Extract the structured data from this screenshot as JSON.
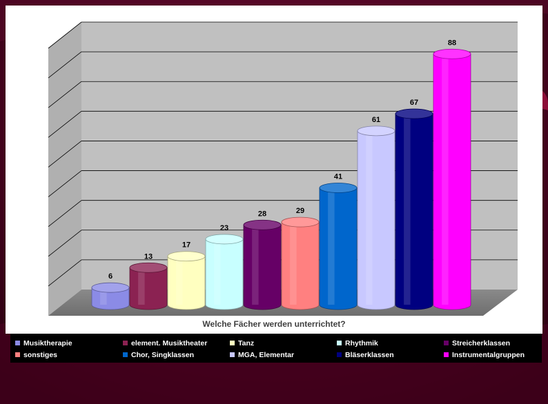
{
  "chart_data": {
    "type": "bar",
    "title": "",
    "xlabel": "Welche Fächer werden unterrichtet?",
    "ylabel": "",
    "ylim": [
      0,
      90
    ],
    "grid": true,
    "legend_position": "bottom",
    "categories": [
      "Musiktherapie",
      "element. Musiktheater",
      "Tanz",
      "Rhythmik",
      "Streicherklassen",
      "sonstiges",
      "Chor, Singklassen",
      "MGA, Elementar",
      "Bläserklassen",
      "Instrumentalgruppen"
    ],
    "values": [
      6,
      13,
      17,
      23,
      28,
      29,
      41,
      61,
      67,
      88
    ],
    "colors": [
      "#8B8BE6",
      "#8B2252",
      "#FFFFC0",
      "#C8FFFF",
      "#660066",
      "#FF8080",
      "#0066CC",
      "#C8C8FF",
      "#000080",
      "#FF00FF"
    ]
  }
}
